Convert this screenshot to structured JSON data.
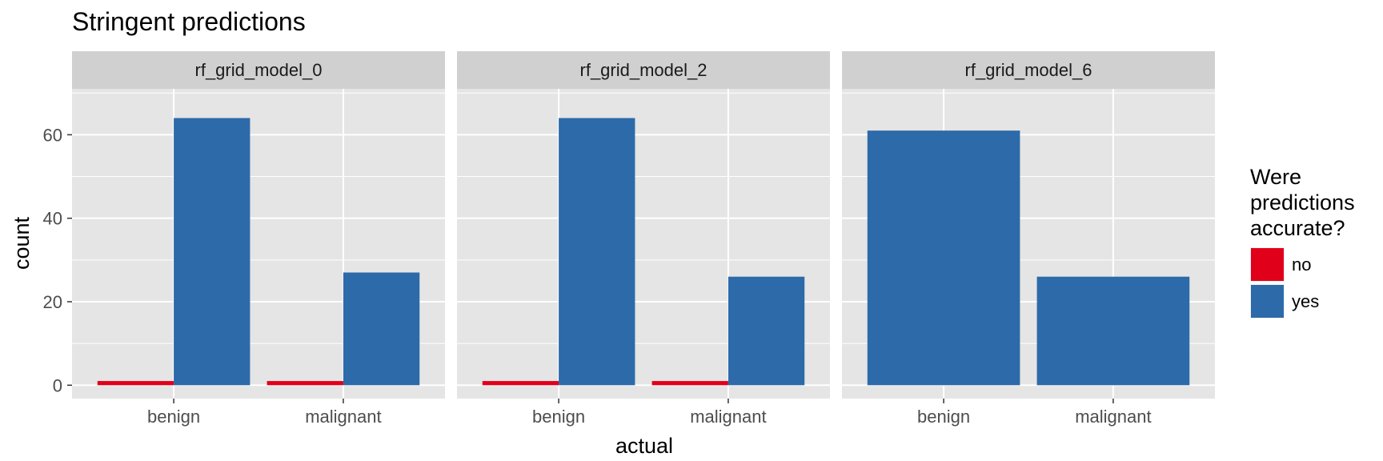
{
  "chart_data": {
    "type": "bar",
    "title": "Stringent predictions",
    "xlabel": "actual",
    "ylabel": "count",
    "ylim": [
      -3.2,
      71
    ],
    "yticks": [
      0,
      20,
      40,
      60
    ],
    "categories": [
      "benign",
      "malignant"
    ],
    "legend": {
      "title": [
        "Were",
        "predictions",
        "accurate?"
      ],
      "placement": "right",
      "items": [
        {
          "label": "no",
          "color": "#e0001a"
        },
        {
          "label": "yes",
          "color": "#2d6aa9"
        }
      ]
    },
    "colors": {
      "panel_bg": "#e5e5e5",
      "strip_bg": "#d0d0d0",
      "grid": "#ffffff"
    },
    "grid": true,
    "facets": [
      {
        "name": "rf_grid_model_0",
        "series": [
          {
            "name": "no",
            "values": [
              1,
              1
            ]
          },
          {
            "name": "yes",
            "values": [
              64,
              27
            ]
          }
        ]
      },
      {
        "name": "rf_grid_model_2",
        "series": [
          {
            "name": "no",
            "values": [
              1,
              1
            ]
          },
          {
            "name": "yes",
            "values": [
              64,
              26
            ]
          }
        ]
      },
      {
        "name": "rf_grid_model_6",
        "series": [
          {
            "name": "yes",
            "values": [
              61,
              26
            ]
          }
        ]
      }
    ]
  }
}
